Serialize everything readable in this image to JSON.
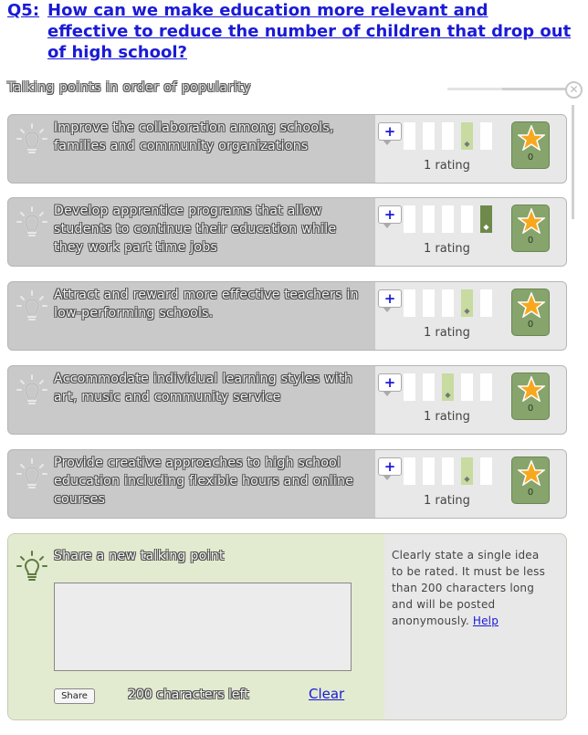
{
  "question": {
    "number": "Q5:",
    "text": "How can we make education more relevant and effective to reduce the number of children that drop out of high school?"
  },
  "list": {
    "heading": "Talking points in order of popularity",
    "close_glyph": "✕"
  },
  "icons": {
    "idea": "lightbulb-icon",
    "comment": "plus-comment-icon",
    "favorite": "star-icon",
    "close": "close-icon"
  },
  "colors": {
    "link": "#1a1ad6",
    "card_bg": "#c9c9c9",
    "rating_active": "#c8dba0",
    "rating_dark": "#6d8a4a",
    "star_button": "#86a46c",
    "star_fill": "#f7a81e",
    "share_bg": "#e2ebcf"
  },
  "talking_points": [
    {
      "text": "Improve the collaboration among schools, families and community organizations",
      "comment_label": "+",
      "rating_label": "1 rating",
      "rating_level": 4,
      "rating_style": "light",
      "favorite_count": "0"
    },
    {
      "text": "Develop apprentice programs that allow students to continue their education while they work part time jobs",
      "comment_label": "+",
      "rating_label": "1 rating",
      "rating_level": 5,
      "rating_style": "dark",
      "favorite_count": "0"
    },
    {
      "text": "Attract and reward more effective teachers in low-performing schools.",
      "comment_label": "+",
      "rating_label": "1 rating",
      "rating_level": 4,
      "rating_style": "light",
      "favorite_count": "0"
    },
    {
      "text": "Accommodate individual learning styles with art, music and community service",
      "comment_label": "+",
      "rating_label": "1 rating",
      "rating_level": 3,
      "rating_style": "light",
      "favorite_count": "0"
    },
    {
      "text": "Provide creative approaches to high school education including flexible hours and online courses",
      "comment_label": "+",
      "rating_label": "1 rating",
      "rating_level": 4,
      "rating_style": "light",
      "favorite_count": "0"
    }
  ],
  "share": {
    "title": "Share a new talking point",
    "textarea_value": "",
    "button_label": "Share",
    "chars_left": "200 characters left",
    "clear_label": "Clear",
    "help_text": "Clearly state a single idea to be rated. It must be less than 200 characters long and will be posted anonymously.",
    "help_link": "Help"
  }
}
